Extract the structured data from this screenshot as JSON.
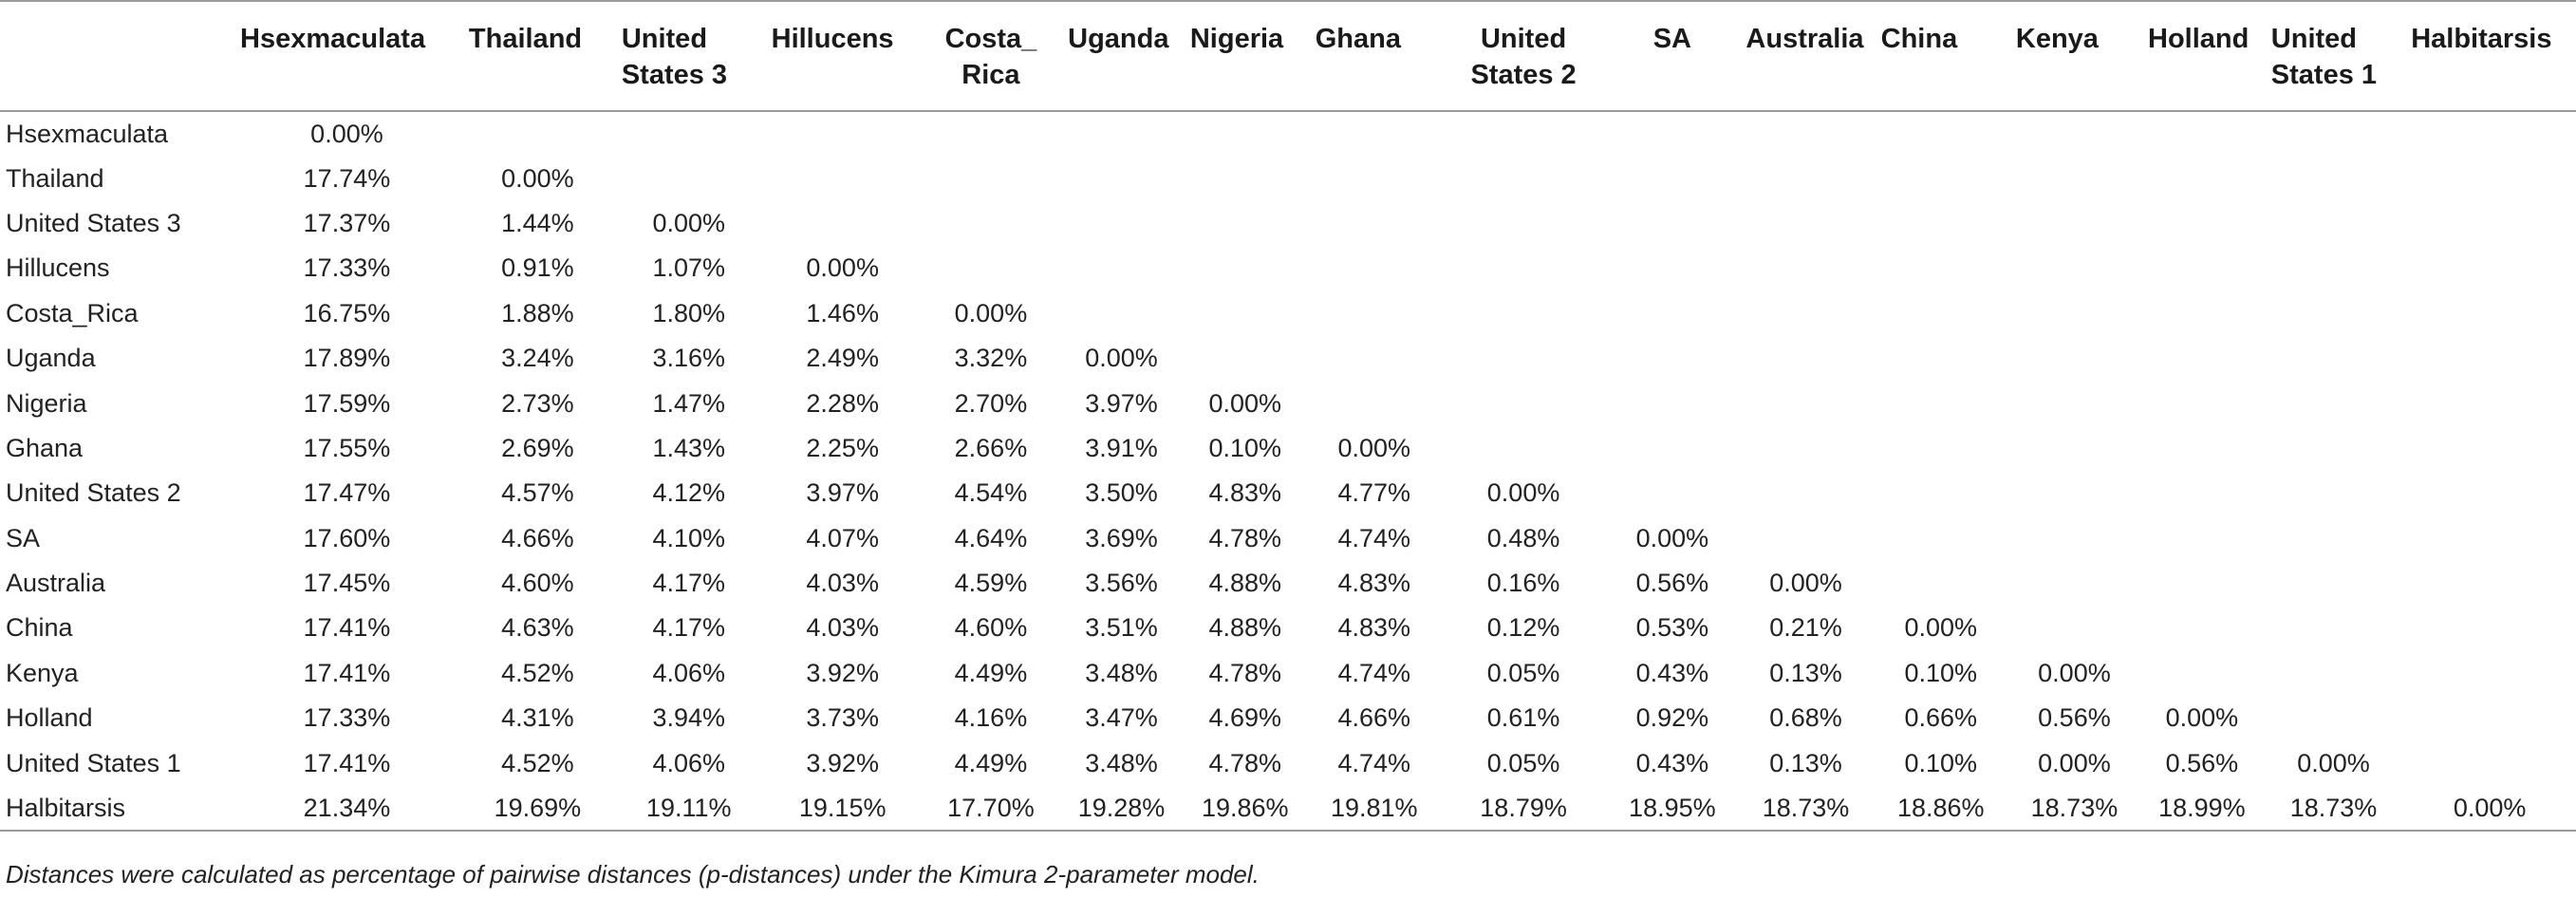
{
  "table": {
    "corner_label": "",
    "columns": [
      "Hsexmaculata",
      "Thailand",
      "United States 3",
      "Hillucens",
      "Costa_ Rica",
      "Uganda",
      "Nigeria",
      "Ghana",
      "United States 2",
      "SA",
      "Australia",
      "China",
      "Kenya",
      "Holland",
      "United States 1",
      "Halbitarsis"
    ],
    "rows": [
      {
        "label": "Hsexmaculata",
        "values": [
          "0.00%"
        ]
      },
      {
        "label": "Thailand",
        "values": [
          "17.74%",
          "0.00%"
        ]
      },
      {
        "label": "United States 3",
        "values": [
          "17.37%",
          "1.44%",
          "0.00%"
        ]
      },
      {
        "label": "Hillucens",
        "values": [
          "17.33%",
          "0.91%",
          "1.07%",
          "0.00%"
        ]
      },
      {
        "label": "Costa_Rica",
        "values": [
          "16.75%",
          "1.88%",
          "1.80%",
          "1.46%",
          "0.00%"
        ]
      },
      {
        "label": "Uganda",
        "values": [
          "17.89%",
          "3.24%",
          "3.16%",
          "2.49%",
          "3.32%",
          "0.00%"
        ]
      },
      {
        "label": "Nigeria",
        "values": [
          "17.59%",
          "2.73%",
          "1.47%",
          "2.28%",
          "2.70%",
          "3.97%",
          "0.00%"
        ]
      },
      {
        "label": "Ghana",
        "values": [
          "17.55%",
          "2.69%",
          "1.43%",
          "2.25%",
          "2.66%",
          "3.91%",
          "0.10%",
          "0.00%"
        ]
      },
      {
        "label": "United States 2",
        "values": [
          "17.47%",
          "4.57%",
          "4.12%",
          "3.97%",
          "4.54%",
          "3.50%",
          "4.83%",
          "4.77%",
          "0.00%"
        ]
      },
      {
        "label": "SA",
        "values": [
          "17.60%",
          "4.66%",
          "4.10%",
          "4.07%",
          "4.64%",
          "3.69%",
          "4.78%",
          "4.74%",
          "0.48%",
          "0.00%"
        ]
      },
      {
        "label": "Australia",
        "values": [
          "17.45%",
          "4.60%",
          "4.17%",
          "4.03%",
          "4.59%",
          "3.56%",
          "4.88%",
          "4.83%",
          "0.16%",
          "0.56%",
          "0.00%"
        ]
      },
      {
        "label": "China",
        "values": [
          "17.41%",
          "4.63%",
          "4.17%",
          "4.03%",
          "4.60%",
          "3.51%",
          "4.88%",
          "4.83%",
          "0.12%",
          "0.53%",
          "0.21%",
          "0.00%"
        ]
      },
      {
        "label": "Kenya",
        "values": [
          "17.41%",
          "4.52%",
          "4.06%",
          "3.92%",
          "4.49%",
          "3.48%",
          "4.78%",
          "4.74%",
          "0.05%",
          "0.43%",
          "0.13%",
          "0.10%",
          "0.00%"
        ]
      },
      {
        "label": "Holland",
        "values": [
          "17.33%",
          "4.31%",
          "3.94%",
          "3.73%",
          "4.16%",
          "3.47%",
          "4.69%",
          "4.66%",
          "0.61%",
          "0.92%",
          "0.68%",
          "0.66%",
          "0.56%",
          "0.00%"
        ]
      },
      {
        "label": "United States 1",
        "values": [
          "17.41%",
          "4.52%",
          "4.06%",
          "3.92%",
          "4.49%",
          "3.48%",
          "4.78%",
          "4.74%",
          "0.05%",
          "0.43%",
          "0.13%",
          "0.10%",
          "0.00%",
          "0.56%",
          "0.00%"
        ]
      },
      {
        "label": "Halbitarsis",
        "values": [
          "21.34%",
          "19.69%",
          "19.11%",
          "19.15%",
          "17.70%",
          "19.28%",
          "19.86%",
          "19.81%",
          "18.79%",
          "18.95%",
          "18.73%",
          "18.86%",
          "18.73%",
          "18.99%",
          "18.73%",
          "0.00%"
        ]
      }
    ],
    "footnote": "Distances were calculated as percentage of pairwise distances (p-distances) under the Kimura 2-parameter model."
  }
}
